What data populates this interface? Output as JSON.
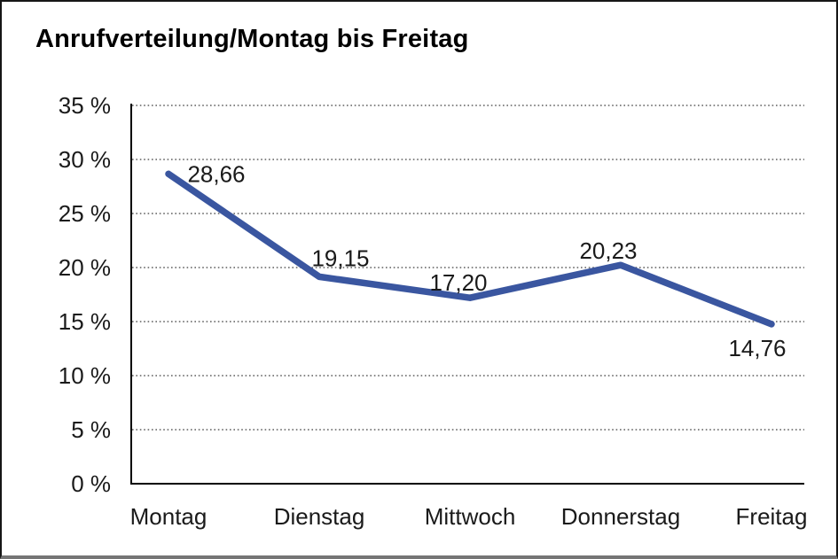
{
  "title": "Anrufverteilung/Montag bis Freitag",
  "chart_data": {
    "type": "line",
    "title": "Anrufverteilung/Montag bis Freitag",
    "categories": [
      "Montag",
      "Dienstag",
      "Mittwoch",
      "Donnerstag",
      "Freitag"
    ],
    "values": [
      28.66,
      19.15,
      17.2,
      20.23,
      14.76
    ],
    "point_labels": [
      "28,66",
      "19,15",
      "17,20",
      "20,23",
      "14,76"
    ],
    "ytick_labels": [
      "0 %",
      "5 %",
      "10 %",
      "15 %",
      "20 %",
      "25 %",
      "30 %",
      "35 %"
    ],
    "ytick_step": 5,
    "ylim": [
      0,
      35
    ],
    "xlabel": "",
    "ylabel": "",
    "grid": "horizontal-dotted",
    "legend": "none",
    "line_color": "#3A56A0",
    "axis_color": "#000000",
    "text_color": "#1a1a1a"
  }
}
